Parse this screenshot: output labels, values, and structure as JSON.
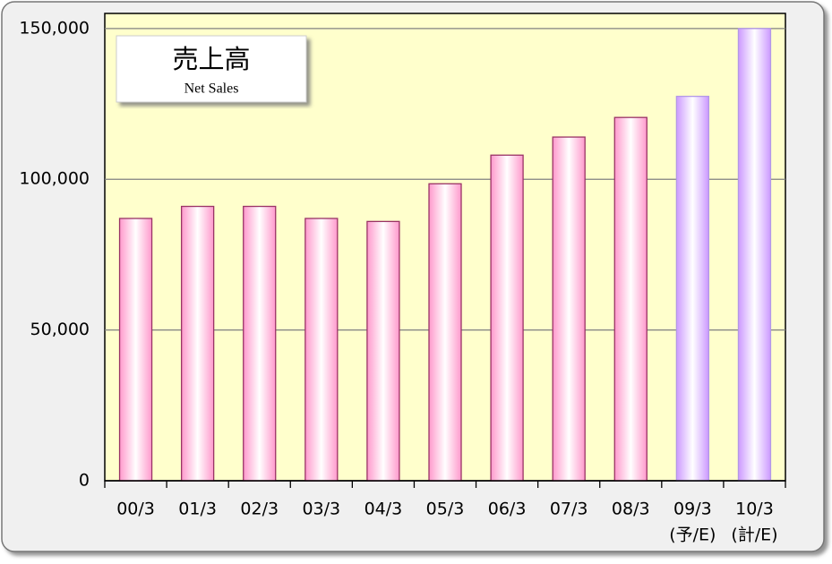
{
  "chart_data": {
    "type": "bar",
    "title": "売上高",
    "subtitle": "Net Sales",
    "categories": [
      "00/3",
      "01/3",
      "02/3",
      "03/3",
      "04/3",
      "05/3",
      "06/3",
      "07/3",
      "08/3",
      "09/3",
      "10/3"
    ],
    "category_notes": [
      null,
      null,
      null,
      null,
      null,
      null,
      null,
      null,
      null,
      "(予/E)",
      "(計/E)"
    ],
    "values": [
      87000,
      91000,
      91000,
      87000,
      86000,
      98500,
      108000,
      114000,
      120500,
      127500,
      150000
    ],
    "colors": [
      "#ff99cc",
      "#ff99cc",
      "#ff99cc",
      "#ff99cc",
      "#ff99cc",
      "#ff99cc",
      "#ff99cc",
      "#ff99cc",
      "#ff99cc",
      "#cc99ff",
      "#cc99ff"
    ],
    "ylim": [
      0,
      155000
    ],
    "yticks": [
      {
        "value": 0,
        "label": "0"
      },
      {
        "value": 50000,
        "label": "50,000"
      },
      {
        "value": 100000,
        "label": "100,000"
      },
      {
        "value": 150000,
        "label": "150,000"
      }
    ],
    "grid": true
  }
}
